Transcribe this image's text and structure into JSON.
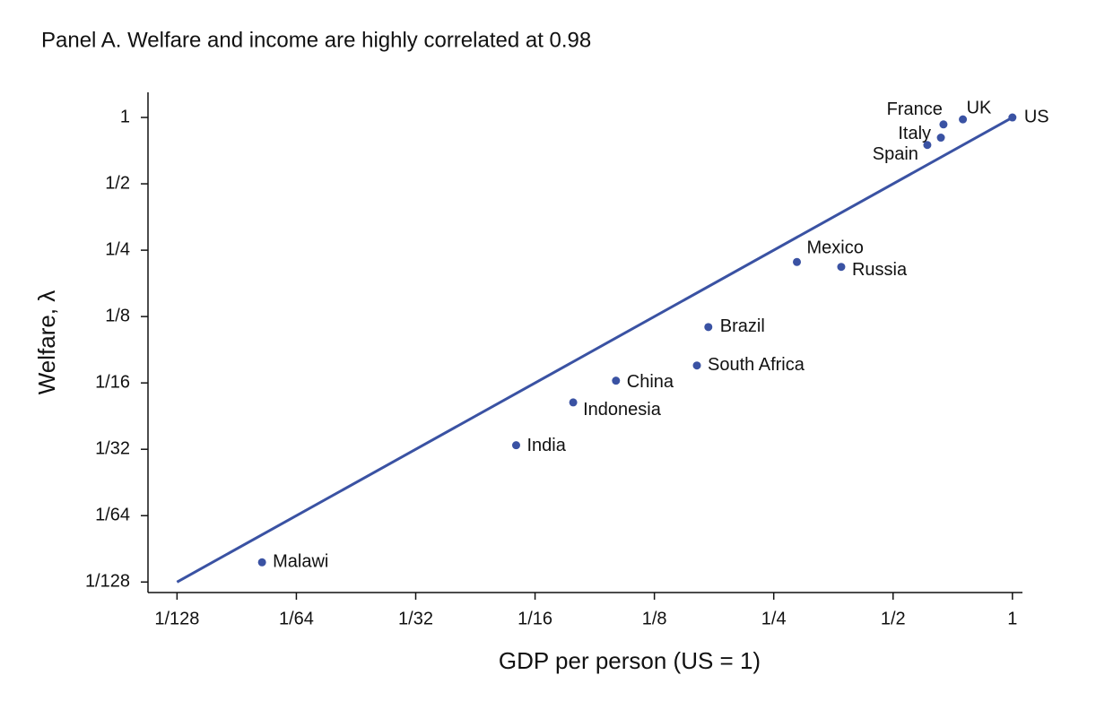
{
  "chart_data": {
    "type": "scatter",
    "title": "Panel A. Welfare and income are highly correlated at 0.98",
    "xlabel": "GDP per person (US = 1)",
    "ylabel": "Welfare, λ",
    "xscale": "log2",
    "yscale": "log2",
    "color": "#3a52a3",
    "labels": [
      "US",
      "UK",
      "France",
      "Italy",
      "Spain",
      "Mexico",
      "Russia",
      "Brazil",
      "South Africa",
      "China",
      "Indonesia",
      "India",
      "Malawi"
    ],
    "x": [
      1,
      0.75,
      0.67,
      0.66,
      0.61,
      0.286,
      0.37,
      0.171,
      0.16,
      0.1,
      0.078,
      0.056,
      0.0128
    ],
    "y": [
      1,
      0.98,
      0.93,
      0.81,
      0.75,
      0.221,
      0.21,
      0.112,
      0.075,
      0.064,
      0.051,
      0.0326,
      0.0096
    ],
    "line": {
      "x": [
        0.0078125,
        1
      ],
      "y": [
        0.0078125,
        1
      ],
      "color": "#3a52a3"
    },
    "xlim": [
      0.0066,
      1.06
    ],
    "ylim": [
      0.007,
      1.3
    ],
    "xticks": [
      {
        "value": 0.0078125,
        "label": "1/128"
      },
      {
        "value": 0.015625,
        "label": "1/64"
      },
      {
        "value": 0.03125,
        "label": "1/32"
      },
      {
        "value": 0.0625,
        "label": "1/16"
      },
      {
        "value": 0.125,
        "label": "1/8"
      },
      {
        "value": 0.25,
        "label": "1/4"
      },
      {
        "value": 0.5,
        "label": "1/2"
      },
      1
    ],
    "yticks": [
      {
        "value": 0.0078125,
        "label": "1/128"
      },
      {
        "value": 0.015625,
        "label": "1/64"
      },
      {
        "value": 0.03125,
        "label": "1/32"
      },
      {
        "value": 0.0625,
        "label": "1/16"
      },
      {
        "value": 0.125,
        "label": "1/8"
      },
      {
        "value": 0.25,
        "label": "1/4"
      },
      {
        "value": 0.5,
        "label": "1/2"
      },
      1
    ]
  }
}
